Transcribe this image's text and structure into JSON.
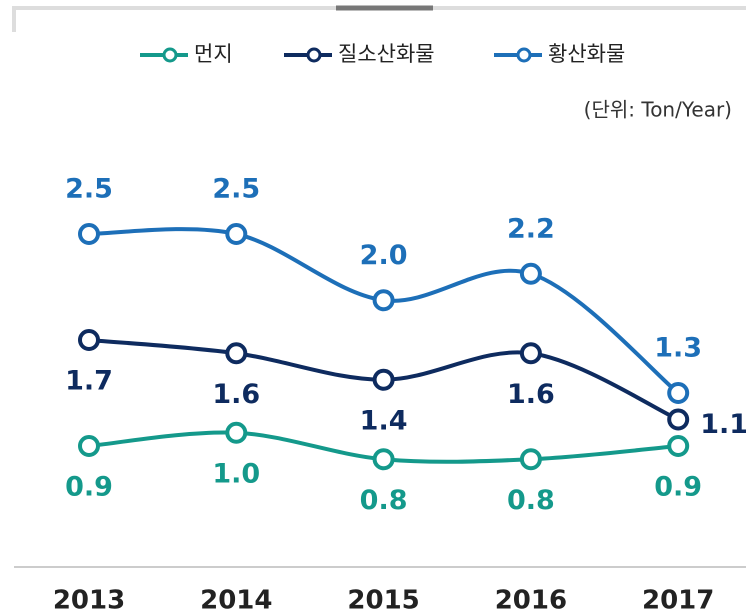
{
  "chart_data": {
    "type": "line",
    "unit_label": "(단위: Ton/Year)",
    "categories": [
      "2013",
      "2014",
      "2015",
      "2016",
      "2017"
    ],
    "series": [
      {
        "name": "먼지",
        "color": "#14998b",
        "values": [
          0.9,
          1.0,
          0.8,
          0.8,
          0.9
        ],
        "value_labels": [
          "0.9",
          "1.0",
          "0.8",
          "0.8",
          "0.9"
        ]
      },
      {
        "name": "질소산화물",
        "color": "#0e2b5f",
        "values": [
          1.7,
          1.6,
          1.4,
          1.6,
          1.1
        ],
        "value_labels": [
          "1.7",
          "1.6",
          "1.4",
          "1.6",
          "1.1"
        ]
      },
      {
        "name": "황산화물",
        "color": "#1d6fb8",
        "values": [
          2.5,
          2.5,
          2.0,
          2.2,
          1.3
        ],
        "value_labels": [
          "2.5",
          "2.5",
          "2.0",
          "2.2",
          "1.3"
        ]
      }
    ]
  }
}
